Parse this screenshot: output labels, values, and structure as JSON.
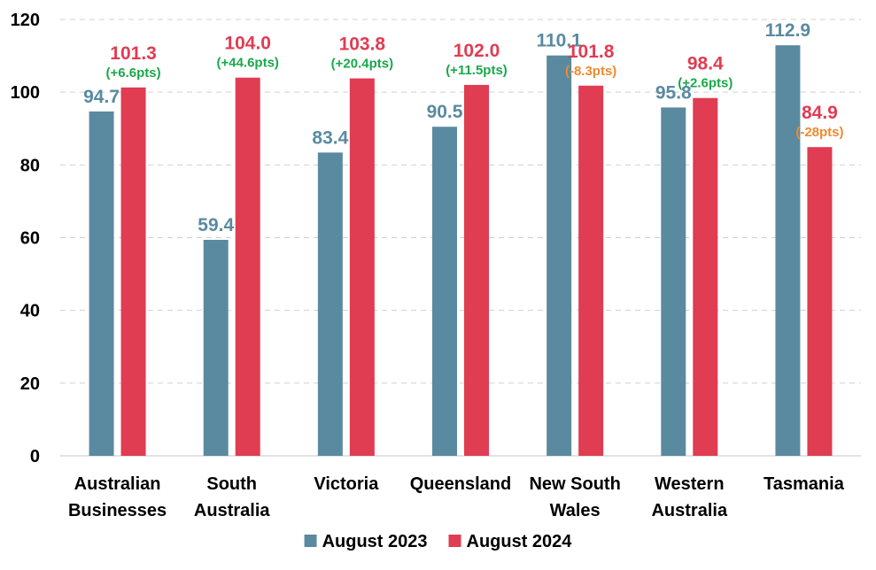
{
  "chart_data": {
    "type": "bar",
    "title": "",
    "xlabel": "",
    "ylabel": "",
    "ylim": [
      0,
      120
    ],
    "yticks": [
      0,
      20,
      40,
      60,
      80,
      100,
      120
    ],
    "grid": true,
    "legend_position": "bottom",
    "categories": [
      [
        "Australian",
        "Businesses"
      ],
      [
        "South",
        "Australia"
      ],
      [
        "Victoria"
      ],
      [
        "Queensland"
      ],
      [
        "New South",
        "Wales"
      ],
      [
        "Western",
        "Australia"
      ],
      [
        "Tasmania"
      ]
    ],
    "series": [
      {
        "name": "August 2023",
        "color": "#5a8aa0",
        "values": [
          94.7,
          59.4,
          83.4,
          90.5,
          110.1,
          95.8,
          112.9
        ],
        "labels": [
          "94.7",
          "59.4",
          "83.4",
          "90.5",
          "110.1",
          "95.8",
          "112.9"
        ]
      },
      {
        "name": "August 2024",
        "color": "#e03c52",
        "values": [
          101.3,
          104.0,
          103.8,
          102.0,
          101.8,
          98.4,
          84.9
        ],
        "labels": [
          "101.3",
          "104.0",
          "103.8",
          "102.0",
          "101.8",
          "98.4",
          "84.9"
        ]
      }
    ],
    "changes": [
      {
        "text": "(+6.6pts)",
        "direction": "up"
      },
      {
        "text": "(+44.6pts)",
        "direction": "up"
      },
      {
        "text": "(+20.4pts)",
        "direction": "up"
      },
      {
        "text": "(+11.5pts)",
        "direction": "up"
      },
      {
        "text": "(-8.3pts)",
        "direction": "down"
      },
      {
        "text": "(+2.6pts)",
        "direction": "up"
      },
      {
        "text": "(-28pts)",
        "direction": "down"
      }
    ],
    "change_colors": {
      "up": "#1aa84a",
      "down": "#f08a2c"
    }
  }
}
